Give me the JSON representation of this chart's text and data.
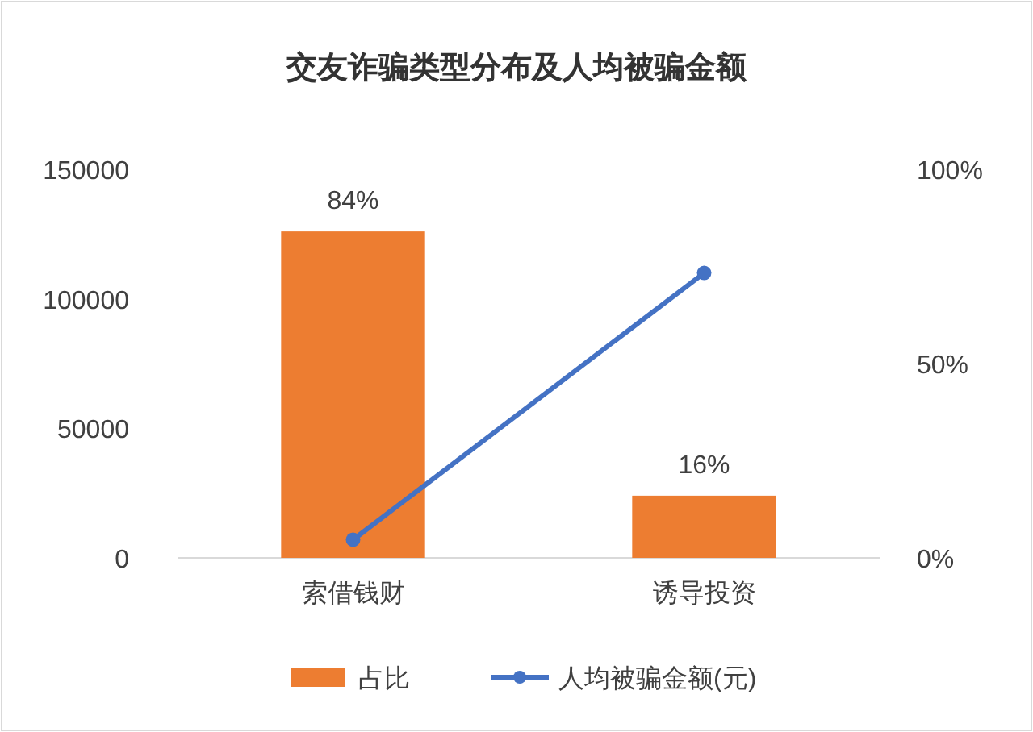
{
  "chart_data": {
    "type": "bar",
    "title": "交友诈骗类型分布及人均被骗金额",
    "categories": [
      "索借钱财",
      "诱导投资"
    ],
    "series": [
      {
        "name": "占比",
        "axis": "y2",
        "color": "#ed7d31",
        "values": [
          84,
          16
        ],
        "value_labels": [
          "84%",
          "16%"
        ]
      },
      {
        "name": "人均被骗金额(元)",
        "type": "line",
        "axis": "y",
        "color": "#4472c4",
        "values": [
          7000,
          110000
        ],
        "marker": "circle"
      }
    ],
    "ylim": [
      0,
      150000
    ],
    "yticks": [
      0,
      50000,
      100000,
      150000
    ],
    "y2lim": [
      0,
      100
    ],
    "y2ticks": [
      {
        "value": 0,
        "label": "0%"
      },
      {
        "value": 50,
        "label": "50%"
      },
      {
        "value": 100,
        "label": "100%"
      }
    ],
    "legend": "bottom"
  }
}
